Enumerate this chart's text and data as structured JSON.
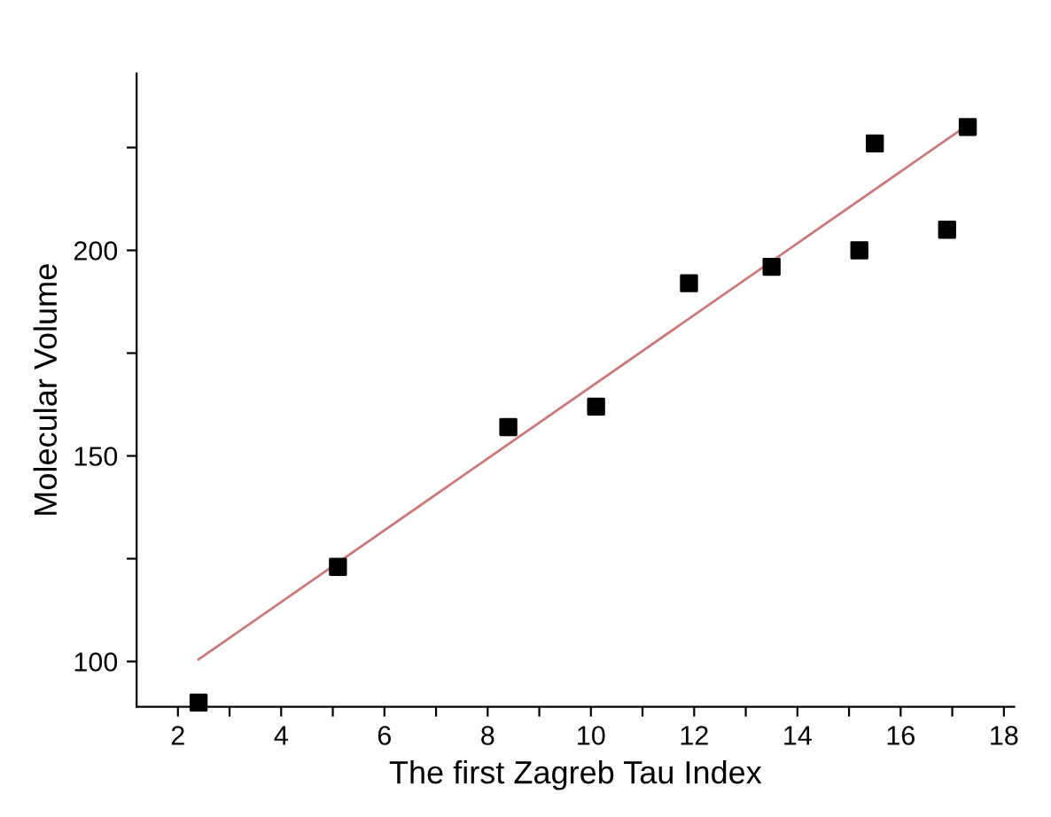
{
  "chart_data": {
    "type": "scatter",
    "xlabel": "The first Zagreb Tau Index",
    "ylabel": "Molecular Volume",
    "series": [
      {
        "color": "#000000",
        "marker": "square",
        "x": [
          2.4,
          5.1,
          8.4,
          10.1,
          11.9,
          13.5,
          15.2,
          15.5,
          16.9,
          17.3
        ],
        "values": [
          90,
          123,
          157,
          162,
          192,
          196,
          200,
          226,
          205,
          230
        ]
      },
      {
        "type": "line",
        "color": "#c87a7a",
        "marker": "none",
        "line_style": "solid",
        "x": [
          2.4,
          17.3
        ],
        "values": [
          100.5,
          230.5
        ]
      }
    ],
    "xlim": [
      1.2,
      18.2
    ],
    "ylim": [
      89,
      243
    ],
    "xticks": [
      2,
      {
        "value": 3,
        "label": null
      },
      4,
      {
        "value": 5,
        "label": null
      },
      6,
      {
        "value": 7,
        "label": null
      },
      8,
      {
        "value": 9,
        "label": null
      },
      10,
      {
        "value": 11,
        "label": null
      },
      12,
      {
        "value": 13,
        "label": null
      },
      14,
      {
        "value": 15,
        "label": null
      },
      16,
      {
        "value": 17,
        "label": null
      },
      18
    ],
    "yticks": [
      100,
      {
        "value": 125,
        "label": null
      },
      150,
      {
        "value": 175,
        "label": null
      },
      200,
      {
        "value": 225,
        "label": null
      }
    ],
    "grid": false,
    "legend": false
  }
}
